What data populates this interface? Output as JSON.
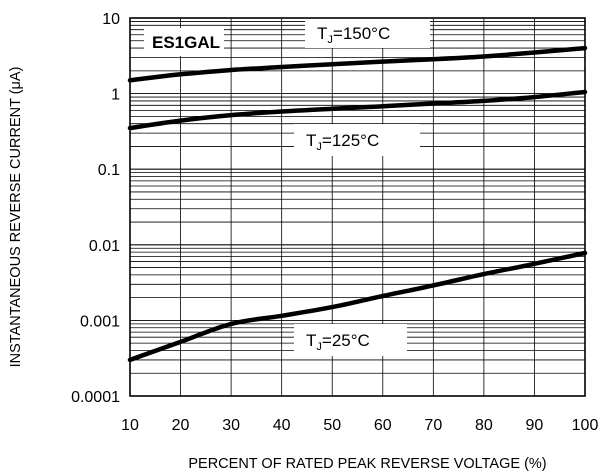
{
  "chart_data": {
    "type": "line",
    "title": "",
    "part_label": "ES1GAL",
    "xlabel": "PERCENT OF RATED PEAK REVERSE VOLTAGE (%)",
    "ylabel": "INSTANTANEOUS REVERSE CURRENT (μA)",
    "xlim": [
      10,
      100
    ],
    "ylim": [
      0.0001,
      10
    ],
    "yscale": "log",
    "grid": true,
    "x_tick_labels": [
      "10",
      "20",
      "30",
      "40",
      "50",
      "60",
      "70",
      "80",
      "90",
      "100"
    ],
    "y_tick_labels": [
      "0.0001",
      "0.001",
      "0.01",
      "0.1",
      "1",
      "10"
    ],
    "x": [
      10,
      20,
      30,
      40,
      50,
      60,
      70,
      80,
      90,
      100
    ],
    "series": [
      {
        "label": "T_J=150°C",
        "label_main": "T",
        "label_sub": "J",
        "label_rest": "=150°C",
        "values": [
          1.5,
          1.8,
          2.05,
          2.25,
          2.45,
          2.65,
          2.85,
          3.1,
          3.5,
          4.0
        ]
      },
      {
        "label": "T_J=125°C",
        "label_main": "T",
        "label_sub": "J",
        "label_rest": "=125°C",
        "values": [
          0.35,
          0.44,
          0.52,
          0.58,
          0.63,
          0.68,
          0.74,
          0.8,
          0.9,
          1.05
        ]
      },
      {
        "label": "T_J=25°C",
        "label_main": "T",
        "label_sub": "J",
        "label_rest": "=25°C",
        "values": [
          0.0003,
          0.00052,
          0.0009,
          0.00115,
          0.0015,
          0.0021,
          0.0029,
          0.0041,
          0.0056,
          0.0078
        ]
      }
    ]
  }
}
